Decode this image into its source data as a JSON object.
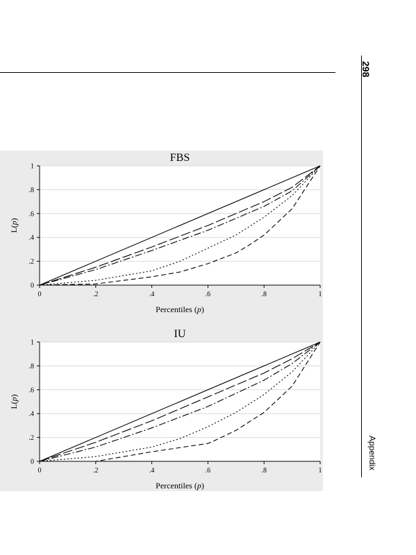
{
  "page": {
    "number": "298",
    "section": "Appendix"
  },
  "chart_data": [
    {
      "type": "line",
      "title": "FBS",
      "xlabel": "Percentiles (p)",
      "ylabel": "L(p)",
      "xlim": [
        0,
        1
      ],
      "ylim": [
        0,
        1
      ],
      "x_ticks": [
        "0",
        ".2",
        ".4",
        ".6",
        ".8",
        "1"
      ],
      "y_ticks": [
        "0",
        ".2",
        ".4",
        ".6",
        ".8",
        "1"
      ],
      "grid": "horizontal",
      "series": [
        {
          "style": "solid",
          "x": [
            0,
            1
          ],
          "y": [
            0,
            1
          ]
        },
        {
          "style": "long-dash",
          "x": [
            0,
            0.2,
            0.4,
            0.6,
            0.8,
            0.9,
            1
          ],
          "y": [
            0,
            0.15,
            0.32,
            0.5,
            0.7,
            0.82,
            1
          ]
        },
        {
          "style": "dash-dot",
          "x": [
            0,
            0.2,
            0.4,
            0.6,
            0.8,
            0.9,
            1
          ],
          "y": [
            0,
            0.13,
            0.29,
            0.46,
            0.66,
            0.79,
            1
          ]
        },
        {
          "style": "dotted",
          "x": [
            0,
            0.2,
            0.4,
            0.5,
            0.6,
            0.7,
            0.8,
            0.9,
            1
          ],
          "y": [
            0,
            0.04,
            0.12,
            0.2,
            0.31,
            0.42,
            0.57,
            0.75,
            1
          ]
        },
        {
          "style": "dashed",
          "x": [
            0,
            0.2,
            0.4,
            0.5,
            0.6,
            0.7,
            0.75,
            0.8,
            0.9,
            1
          ],
          "y": [
            0,
            0.01,
            0.07,
            0.11,
            0.18,
            0.27,
            0.34,
            0.42,
            0.64,
            1
          ]
        }
      ]
    },
    {
      "type": "line",
      "title": "IU",
      "xlabel": "Percentiles (p)",
      "ylabel": "L(p)",
      "xlim": [
        0,
        1
      ],
      "ylim": [
        0,
        1
      ],
      "x_ticks": [
        "0",
        ".2",
        ".4",
        ".6",
        ".8",
        "1"
      ],
      "y_ticks": [
        "0",
        ".2",
        ".4",
        ".6",
        ".8",
        "1"
      ],
      "grid": "horizontal",
      "series": [
        {
          "style": "solid",
          "x": [
            0,
            1
          ],
          "y": [
            0,
            1
          ]
        },
        {
          "style": "long-dash",
          "x": [
            0,
            0.2,
            0.4,
            0.6,
            0.8,
            0.9,
            1
          ],
          "y": [
            0,
            0.16,
            0.34,
            0.54,
            0.74,
            0.86,
            1
          ]
        },
        {
          "style": "dash-dot",
          "x": [
            0,
            0.2,
            0.4,
            0.6,
            0.8,
            0.9,
            1
          ],
          "y": [
            0,
            0.12,
            0.28,
            0.46,
            0.68,
            0.82,
            1
          ]
        },
        {
          "style": "dotted",
          "x": [
            0,
            0.2,
            0.4,
            0.5,
            0.6,
            0.7,
            0.8,
            0.9,
            1
          ],
          "y": [
            0,
            0.04,
            0.12,
            0.19,
            0.29,
            0.41,
            0.56,
            0.75,
            1
          ]
        },
        {
          "style": "dashed",
          "x": [
            0,
            0.2,
            0.4,
            0.6,
            0.62,
            0.7,
            0.8,
            0.9,
            1
          ],
          "y": [
            0,
            0.0,
            0.08,
            0.15,
            0.17,
            0.26,
            0.41,
            0.63,
            1
          ]
        }
      ]
    }
  ]
}
